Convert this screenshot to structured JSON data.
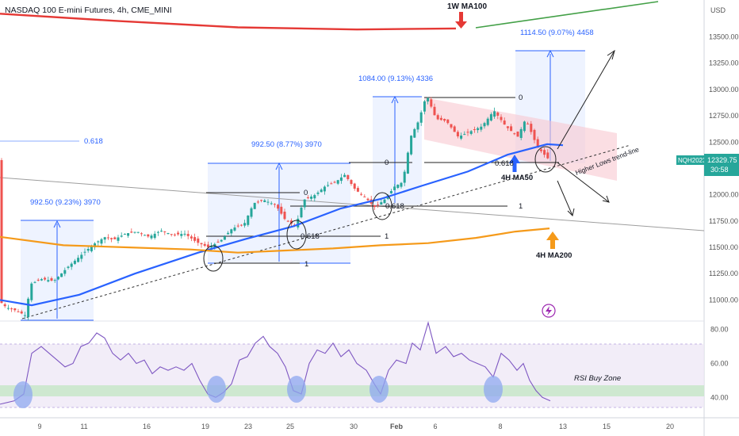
{
  "header": {
    "symbol_title": "NASDAQ 100 E-mini Futures, 4h, CME_MINI",
    "currency": "USD",
    "symbol_badge": "NQH2023",
    "last_price": "12329.75",
    "countdown": "30:58"
  },
  "colors": {
    "up_candle": "#26a69a",
    "down_candle": "#ef5350",
    "ma50": "#2962ff",
    "ma200": "#f59a1a",
    "ma100_weekly": "#e53935",
    "green_line": "#43a047",
    "channel_fill": "#f8d0d6",
    "measure_line": "#2962ff",
    "rsi_line": "#7e57c2",
    "rsi_band": "#ede7f6",
    "rsi_buy_zone": "#c8e6c9",
    "rsi_circle": "#8fa8f0"
  },
  "annotations": {
    "ma100_weekly_label": "1W MA100",
    "ma50_label": "4H MA50",
    "ma200_label": "4H MA200",
    "trendline_label": "Higher Lows trend-line",
    "rsi_zone_label": "RSI Buy Zone",
    "fib_0618_left": "0.618",
    "measures": [
      "992.50 (9.23%) 3970",
      "992.50 (8.77%) 3970",
      "1084.00 (9.13%) 4336",
      "1114.50 (9.07%) 4458"
    ],
    "fib_levels": [
      "0",
      "0.618",
      "1"
    ]
  },
  "chart_data": [
    {
      "type": "line",
      "title": "NASDAQ 100 E-mini Futures, 4h, CME_MINI",
      "xlabel": "",
      "ylabel": "USD",
      "ylim": [
        10800,
        13850
      ],
      "y_ticks": [
        "13500.00",
        "13250.00",
        "13000.00",
        "12750.00",
        "12500.00",
        "12250.00",
        "12000.00",
        "11750.00",
        "11500.00",
        "11250.00",
        "11000.00"
      ],
      "x_tick_labels": [
        "9",
        "11",
        "16",
        "19",
        "23",
        "25",
        "30",
        "Feb",
        "6",
        "8",
        "13",
        "15",
        "20"
      ],
      "price_path": [
        [
          0,
          11000
        ],
        [
          10,
          10930
        ],
        [
          22,
          10900
        ],
        [
          35,
          10850
        ],
        [
          40,
          11150
        ],
        [
          55,
          11200
        ],
        [
          70,
          11180
        ],
        [
          90,
          11330
        ],
        [
          105,
          11430
        ],
        [
          120,
          11530
        ],
        [
          135,
          11600
        ],
        [
          145,
          11570
        ],
        [
          160,
          11630
        ],
        [
          175,
          11650
        ],
        [
          190,
          11600
        ],
        [
          205,
          11660
        ],
        [
          220,
          11620
        ],
        [
          235,
          11630
        ],
        [
          250,
          11550
        ],
        [
          265,
          11500
        ],
        [
          280,
          11560
        ],
        [
          295,
          11680
        ],
        [
          310,
          11720
        ],
        [
          322,
          11920
        ],
        [
          335,
          11950
        ],
        [
          350,
          11900
        ],
        [
          362,
          11760
        ],
        [
          375,
          11700
        ],
        [
          385,
          11950
        ],
        [
          400,
          12000
        ],
        [
          412,
          12080
        ],
        [
          425,
          12120
        ],
        [
          437,
          12190
        ],
        [
          450,
          12050
        ],
        [
          462,
          11980
        ],
        [
          475,
          11880
        ],
        [
          488,
          11960
        ],
        [
          500,
          12080
        ],
        [
          510,
          12120
        ],
        [
          520,
          12550
        ],
        [
          530,
          12700
        ],
        [
          540,
          12950
        ],
        [
          552,
          12720
        ],
        [
          565,
          12700
        ],
        [
          580,
          12550
        ],
        [
          595,
          12600
        ],
        [
          610,
          12650
        ],
        [
          625,
          12800
        ],
        [
          640,
          12650
        ],
        [
          655,
          12550
        ],
        [
          665,
          12720
        ],
        [
          680,
          12450
        ],
        [
          695,
          12329
        ]
      ],
      "series": [
        {
          "name": "4H MA50",
          "points": [
            [
              0,
              11000
            ],
            [
              40,
              10950
            ],
            [
              100,
              11050
            ],
            [
              170,
              11250
            ],
            [
              250,
              11450
            ],
            [
              310,
              11580
            ],
            [
              370,
              11700
            ],
            [
              430,
              11870
            ],
            [
              480,
              11960
            ],
            [
              530,
              12080
            ],
            [
              590,
              12220
            ],
            [
              640,
              12380
            ],
            [
              690,
              12480
            ],
            [
              710,
              12470
            ]
          ]
        },
        {
          "name": "4H MA200",
          "points": [
            [
              0,
              11600
            ],
            [
              80,
              11520
            ],
            [
              160,
              11500
            ],
            [
              240,
              11480
            ],
            [
              300,
              11450
            ],
            [
              360,
              11470
            ],
            [
              420,
              11490
            ],
            [
              480,
              11520
            ],
            [
              540,
              11540
            ],
            [
              600,
              11590
            ],
            [
              650,
              11650
            ],
            [
              693,
              11680
            ]
          ]
        },
        {
          "name": "1W MA100",
          "points": [
            [
              0,
              13720
            ],
            [
              150,
              13650
            ],
            [
              300,
              13590
            ],
            [
              450,
              13570
            ],
            [
              575,
              13580
            ]
          ]
        }
      ]
    },
    {
      "type": "line",
      "title": "",
      "ylim": [
        28,
        85
      ],
      "y_ticks": [
        "80.00",
        "60.00",
        "40.00"
      ],
      "values": [
        [
          0,
          36
        ],
        [
          18,
          38
        ],
        [
          30,
          42
        ],
        [
          40,
          66
        ],
        [
          52,
          70
        ],
        [
          62,
          66
        ],
        [
          72,
          62
        ],
        [
          82,
          58
        ],
        [
          92,
          60
        ],
        [
          102,
          70
        ],
        [
          112,
          72
        ],
        [
          122,
          78
        ],
        [
          132,
          75
        ],
        [
          142,
          66
        ],
        [
          152,
          62
        ],
        [
          162,
          66
        ],
        [
          172,
          60
        ],
        [
          182,
          62
        ],
        [
          192,
          54
        ],
        [
          202,
          58
        ],
        [
          212,
          56
        ],
        [
          222,
          58
        ],
        [
          232,
          56
        ],
        [
          242,
          60
        ],
        [
          252,
          50
        ],
        [
          262,
          42
        ],
        [
          272,
          40
        ],
        [
          282,
          43
        ],
        [
          292,
          48
        ],
        [
          302,
          62
        ],
        [
          312,
          64
        ],
        [
          322,
          72
        ],
        [
          332,
          76
        ],
        [
          340,
          70
        ],
        [
          350,
          66
        ],
        [
          360,
          58
        ],
        [
          370,
          44
        ],
        [
          380,
          42
        ],
        [
          390,
          60
        ],
        [
          400,
          68
        ],
        [
          410,
          66
        ],
        [
          420,
          72
        ],
        [
          430,
          64
        ],
        [
          440,
          68
        ],
        [
          450,
          60
        ],
        [
          462,
          56
        ],
        [
          472,
          48
        ],
        [
          480,
          42
        ],
        [
          490,
          56
        ],
        [
          500,
          62
        ],
        [
          512,
          60
        ],
        [
          520,
          72
        ],
        [
          530,
          68
        ],
        [
          540,
          84
        ],
        [
          550,
          66
        ],
        [
          562,
          70
        ],
        [
          572,
          64
        ],
        [
          582,
          66
        ],
        [
          592,
          62
        ],
        [
          602,
          60
        ],
        [
          612,
          58
        ],
        [
          622,
          52
        ],
        [
          632,
          66
        ],
        [
          642,
          62
        ],
        [
          652,
          56
        ],
        [
          660,
          60
        ],
        [
          668,
          50
        ],
        [
          676,
          44
        ],
        [
          684,
          40
        ],
        [
          694,
          38
        ]
      ]
    }
  ]
}
